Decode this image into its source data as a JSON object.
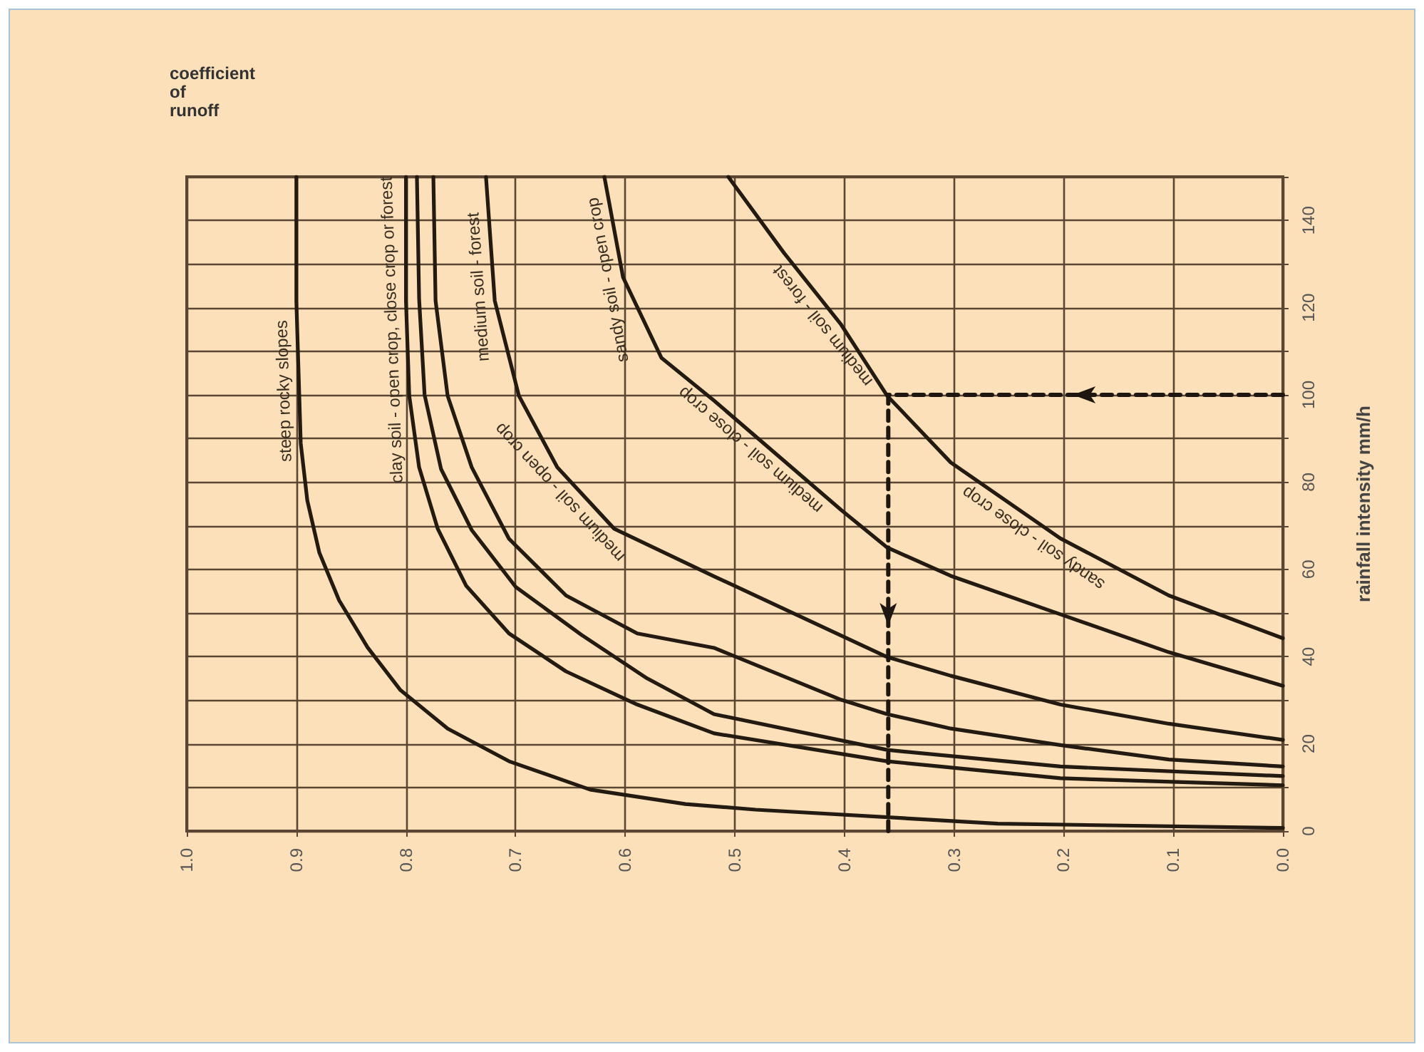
{
  "chart_data": {
    "type": "line",
    "xlabel": "coefficient of runoff",
    "ylabel": "rainfall intensity mm/h",
    "xlim": [
      1.0,
      0.0
    ],
    "xticks": [
      {
        "value": 1.0,
        "label": "1.0"
      },
      0.9,
      0.8,
      0.7,
      0.6,
      0.5,
      0.4,
      0.3,
      0.2,
      0.1,
      {
        "value": 0.0,
        "label": "0.0"
      }
    ],
    "ylim": [
      0,
      150
    ],
    "yticks": [
      0,
      {
        "value": 10,
        "label": null
      },
      20,
      {
        "value": 30,
        "label": null
      },
      40,
      {
        "value": 50,
        "label": null
      },
      60,
      {
        "value": 70,
        "label": null
      },
      80,
      {
        "value": 90,
        "label": null
      },
      100,
      {
        "value": 110,
        "label": null
      },
      120,
      {
        "value": 130,
        "label": null
      },
      140,
      {
        "value": 150,
        "label": null
      }
    ],
    "grid": true,
    "marker": "none",
    "line_style": "solid",
    "series": [
      {
        "color": "#231a12",
        "x": [
          0.9,
          0.9,
          0.896,
          0.89,
          0.879,
          0.861,
          0.835,
          0.805,
          0.762,
          0.706,
          0.632,
          0.545,
          0.481,
          0.26,
          0.0
        ],
        "values": [
          150,
          121.6,
          88.9,
          75.8,
          63.8,
          52.9,
          42.1,
          32.3,
          23.5,
          16,
          9.5,
          6.2,
          4.9,
          1.7,
          0.7
        ]
      },
      {
        "color": "#231a12",
        "x": [
          0.8,
          0.8,
          0.797,
          0.788,
          0.771,
          0.745,
          0.706,
          0.654,
          0.589,
          0.519,
          0.361,
          0.203,
          0.0
        ],
        "values": [
          150,
          121.6,
          99.8,
          83.4,
          69.3,
          56.2,
          45.3,
          36.6,
          29,
          22.4,
          16,
          12.1,
          10.5
        ]
      },
      {
        "color": "#231a12",
        "x": [
          0.79,
          0.788,
          0.783,
          0.768,
          0.74,
          0.7,
          0.64,
          0.58,
          0.519,
          0.361,
          0.203,
          0.0
        ],
        "values": [
          150,
          122,
          100,
          83,
          69,
          56,
          45,
          35,
          26.8,
          18.6,
          14.8,
          12.6
        ]
      },
      {
        "color": "#231a12",
        "x": [
          0.775,
          0.773,
          0.762,
          0.74,
          0.706,
          0.654,
          0.589,
          0.519,
          0.403,
          0.361,
          0.303,
          0.203,
          0.104,
          0.0
        ],
        "values": [
          150,
          121.6,
          99.8,
          83.4,
          67,
          54,
          45.3,
          42,
          30.1,
          26.8,
          23.5,
          19.7,
          16.4,
          14.8
        ]
      },
      {
        "color": "#231a12",
        "x": [
          0.727,
          0.719,
          0.697,
          0.662,
          0.61,
          0.519,
          0.361,
          0.303,
          0.203,
          0.104,
          0.0
        ],
        "values": [
          150,
          121.6,
          99.8,
          83.4,
          69.3,
          58.4,
          39.9,
          35.6,
          29,
          24.6,
          20.9
        ]
      },
      {
        "color": "#231a12",
        "x": [
          0.619,
          0.602,
          0.567,
          0.519,
          0.403,
          0.361,
          0.303,
          0.203,
          0.104,
          0.0
        ],
        "values": [
          150,
          127,
          108.5,
          98.7,
          73.6,
          65,
          58.5,
          49.7,
          41,
          33.3
        ]
      },
      {
        "color": "#231a12",
        "x": [
          0.506,
          0.455,
          0.403,
          0.361,
          0.303,
          0.203,
          0.104,
          0.0
        ],
        "values": [
          150,
          132.5,
          116.1,
          99.8,
          84.5,
          67.1,
          54,
          44.2
        ]
      },
      {
        "color": "#1e1610",
        "line_style": "dashed",
        "x": [
          0.0,
          0.36,
          0.36
        ],
        "values": [
          100,
          100,
          0
        ]
      }
    ],
    "annotations": [
      {
        "text": "steep rocky slopes",
        "x": 0.8975,
        "y": 101
      },
      {
        "text": "clay soil - open crop, close crop or forest",
        "x": 0.799,
        "y": 115
      },
      {
        "text": "medium soil - open crop",
        "x": 0.6495,
        "y": 80
      },
      {
        "text": "medium soil - close crop",
        "x": 0.4766,
        "y": 90
      },
      {
        "text": "medium soil - forest",
        "x": 0.72,
        "y": 125
      },
      {
        "text": "sandy soil - open crop",
        "x": 0.602,
        "y": 127
      },
      {
        "text": "sandy soil - close crop",
        "x": 0.2197,
        "y": 70
      },
      {
        "text": "medium soil - forest",
        "x": 0.409,
        "y": 118
      }
    ]
  }
}
